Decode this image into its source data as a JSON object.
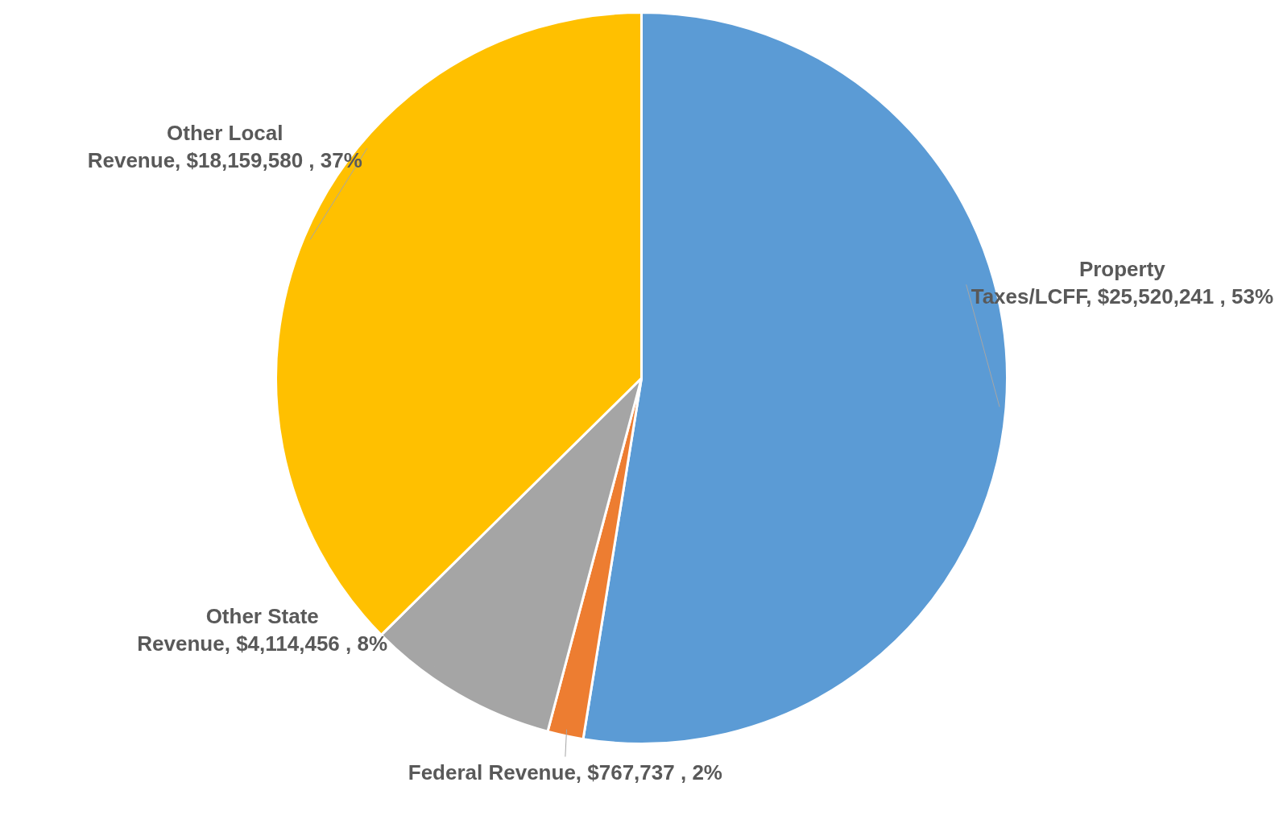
{
  "chart_data": {
    "type": "pie",
    "categories": [
      "Property Taxes/LCFF",
      "Federal Revenue",
      "Other State Revenue",
      "Other Local Revenue"
    ],
    "values": [
      25520241,
      767737,
      4114456,
      18159580
    ],
    "colors": [
      "#5b9bd5",
      "#ed7d31",
      "#a5a5a5",
      "#ffc000"
    ],
    "value_labels": [
      "$25,520,241 , 53%",
      "$767,737 , 2%",
      "$4,114,456 , 8%",
      "$18,159,580 , 37%"
    ],
    "legend": false
  }
}
